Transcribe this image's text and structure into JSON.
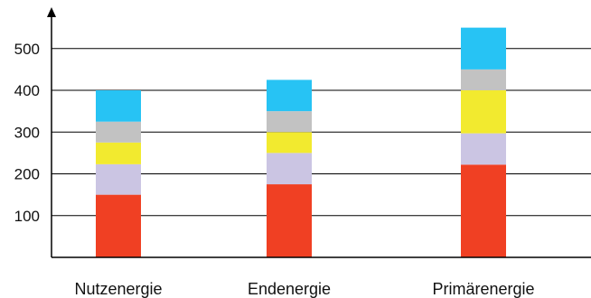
{
  "chart_data": {
    "type": "bar",
    "stacked": true,
    "title": "",
    "xlabel": "",
    "ylabel": "",
    "categories": [
      "Nutzenergie",
      "Endenergie",
      "Primärenergie"
    ],
    "ylim": [
      0,
      550
    ],
    "yticks": [
      100,
      200,
      300,
      400,
      500
    ],
    "grid": true,
    "legend": "none",
    "series": [
      {
        "color": "#f04023",
        "values": [
          150,
          175,
          222
        ]
      },
      {
        "color": "#cbc5e3",
        "values": [
          73,
          75,
          75
        ]
      },
      {
        "color": "#f2ea2f",
        "values": [
          52,
          50,
          103
        ]
      },
      {
        "color": "#c2c2c2",
        "values": [
          50,
          50,
          50
        ]
      },
      {
        "color": "#27c3f4",
        "values": [
          75,
          75,
          100
        ]
      }
    ]
  }
}
